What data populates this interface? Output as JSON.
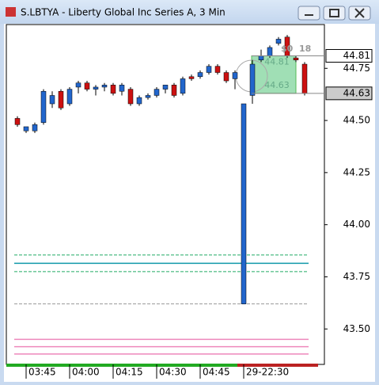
{
  "window_title": "S.LBTYA - Liberty Global Inc Series A, 3 Min",
  "chart_data": {
    "type": "candlestick",
    "categories": [
      null,
      "03:45",
      null,
      null,
      null,
      null,
      "04:00",
      null,
      null,
      null,
      null,
      "04:15",
      null,
      null,
      null,
      null,
      "04:30",
      null,
      null,
      null,
      null,
      "04:45",
      null,
      null,
      null,
      null,
      "29-22:30",
      null,
      null,
      null,
      null,
      null,
      null,
      null
    ],
    "open": [
      44.51,
      44.45,
      44.45,
      44.49,
      44.58,
      44.64,
      44.58,
      44.66,
      44.68,
      44.65,
      44.66,
      44.67,
      44.64,
      44.65,
      44.58,
      44.61,
      44.62,
      44.65,
      44.67,
      44.63,
      44.71,
      44.71,
      44.73,
      44.76,
      44.73,
      44.7,
      43.62,
      44.62,
      44.79,
      44.81,
      44.87,
      44.9,
      44.8,
      44.77
    ],
    "high": [
      44.52,
      44.47,
      44.49,
      44.65,
      44.64,
      44.65,
      44.66,
      44.69,
      44.69,
      44.67,
      44.68,
      44.68,
      44.68,
      44.66,
      44.62,
      44.63,
      44.66,
      44.67,
      44.68,
      44.71,
      44.72,
      44.74,
      44.77,
      44.77,
      44.74,
      44.74,
      44.58,
      44.79,
      44.84,
      44.86,
      44.9,
      44.91,
      44.81,
      44.78
    ],
    "low": [
      44.47,
      44.44,
      44.44,
      44.48,
      44.56,
      44.55,
      44.57,
      44.63,
      44.64,
      44.62,
      44.64,
      44.62,
      44.62,
      44.57,
      44.57,
      44.6,
      44.61,
      44.63,
      44.61,
      44.62,
      44.69,
      44.7,
      44.72,
      44.72,
      44.68,
      44.65,
      43.62,
      44.58,
      44.78,
      44.8,
      44.86,
      44.8,
      44.78,
      44.62
    ],
    "close": [
      44.48,
      44.47,
      44.48,
      44.64,
      44.62,
      44.56,
      44.65,
      44.68,
      44.65,
      44.66,
      44.67,
      44.63,
      44.67,
      44.58,
      44.61,
      44.62,
      44.65,
      44.67,
      44.62,
      44.7,
      44.7,
      44.73,
      44.76,
      44.73,
      44.69,
      44.73,
      44.58,
      44.77,
      44.81,
      44.85,
      44.89,
      44.81,
      44.79,
      44.63
    ],
    "up_color": "#2266cc",
    "down_color": "#cc1111",
    "ylim": [
      43.33,
      44.96
    ],
    "yticks": [
      {
        "value": 43.5,
        "label": "43.50"
      },
      43.75,
      {
        "value": 44,
        "label": "44.00"
      },
      44.25,
      {
        "value": 44.5,
        "label": "44.50"
      },
      44.75
    ],
    "price_tags": [
      44.81,
      44.63
    ],
    "levels": [
      {
        "value": 43.855,
        "color": "#22aa66",
        "dash": true
      },
      {
        "value": 43.815,
        "color": "#1199aa",
        "dash": false
      },
      {
        "value": 43.775,
        "color": "#22aa66",
        "dash": true
      },
      {
        "value": 43.62,
        "color": "#999999",
        "dash": true
      },
      {
        "value": 43.45,
        "color": "#ee88bb",
        "dash": false
      },
      {
        "value": 43.415,
        "color": "#ee88bb",
        "dash": false
      },
      {
        "value": 43.38,
        "color": "#ee88bb",
        "dash": false
      }
    ],
    "position_box": {
      "top": 44.81,
      "bottom": 44.63
    },
    "annotations": [
      "$0",
      "18"
    ]
  }
}
